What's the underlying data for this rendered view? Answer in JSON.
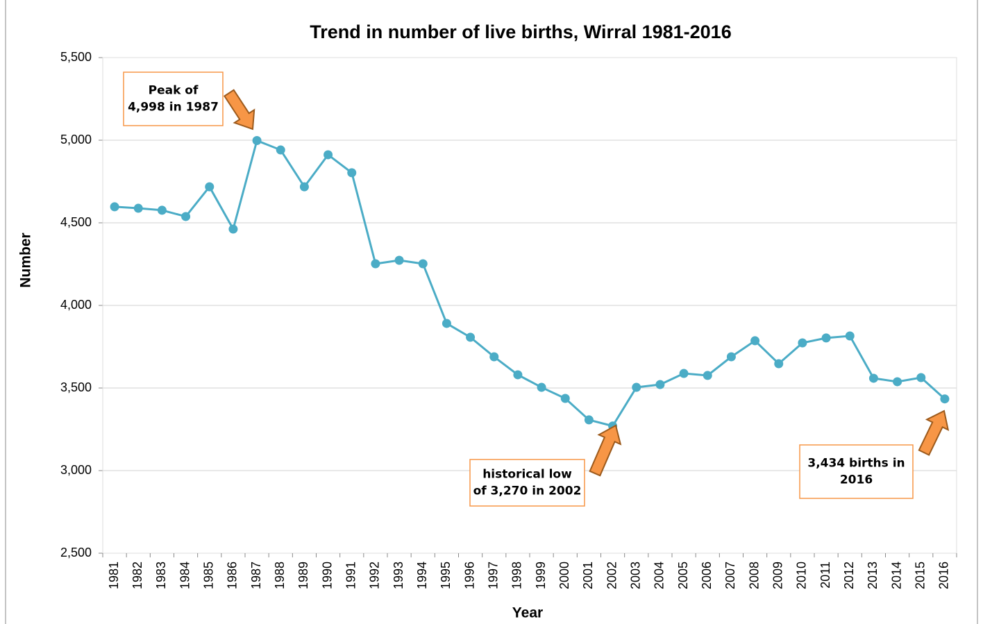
{
  "chart_data": {
    "type": "line",
    "title": "Trend in number of live births, Wirral 1981-2016",
    "x_label": "Year",
    "y_label": "Number",
    "categories": [
      "1981",
      "1982",
      "1983",
      "1984",
      "1985",
      "1986",
      "1987",
      "1988",
      "1989",
      "1990",
      "1991",
      "1992",
      "1993",
      "1994",
      "1995",
      "1996",
      "1997",
      "1998",
      "1999",
      "2000",
      "2001",
      "2002",
      "2003",
      "2004",
      "2005",
      "2006",
      "2007",
      "2008",
      "2009",
      "2010",
      "2011",
      "2012",
      "2013",
      "2014",
      "2015",
      "2016"
    ],
    "series": [
      {
        "name": "Live births",
        "color": "#4bacc6",
        "values": [
          4597,
          4588,
          4576,
          4538,
          4718,
          4462,
          4998,
          4941,
          4718,
          4912,
          4803,
          4252,
          4273,
          4252,
          3891,
          3807,
          3689,
          3580,
          3504,
          3437,
          3307,
          3270,
          3504,
          3521,
          3588,
          3576,
          3689,
          3786,
          3647,
          3773,
          3803,
          3815,
          3559,
          3538,
          3563,
          3434
        ]
      }
    ],
    "ylim": [
      2500,
      5500
    ],
    "yticks": [
      {
        "value": 2500,
        "label": "2,500"
      },
      {
        "value": 3000,
        "label": "3,000"
      },
      {
        "value": 3500,
        "label": "3,500"
      },
      {
        "value": 4000,
        "label": "4,000"
      },
      {
        "value": 4500,
        "label": "4,500"
      },
      {
        "value": 5000,
        "label": "5,000"
      },
      {
        "value": 5500,
        "label": "5,500"
      }
    ],
    "grid": true,
    "annotations": [
      {
        "lines": [
          "Peak of",
          "4,998 in 1987"
        ]
      },
      {
        "lines": [
          "historical low",
          "of 3,270 in 2002"
        ]
      },
      {
        "lines": [
          "3,434 births in",
          "2016"
        ]
      }
    ],
    "annotation_color": "#f79646"
  }
}
